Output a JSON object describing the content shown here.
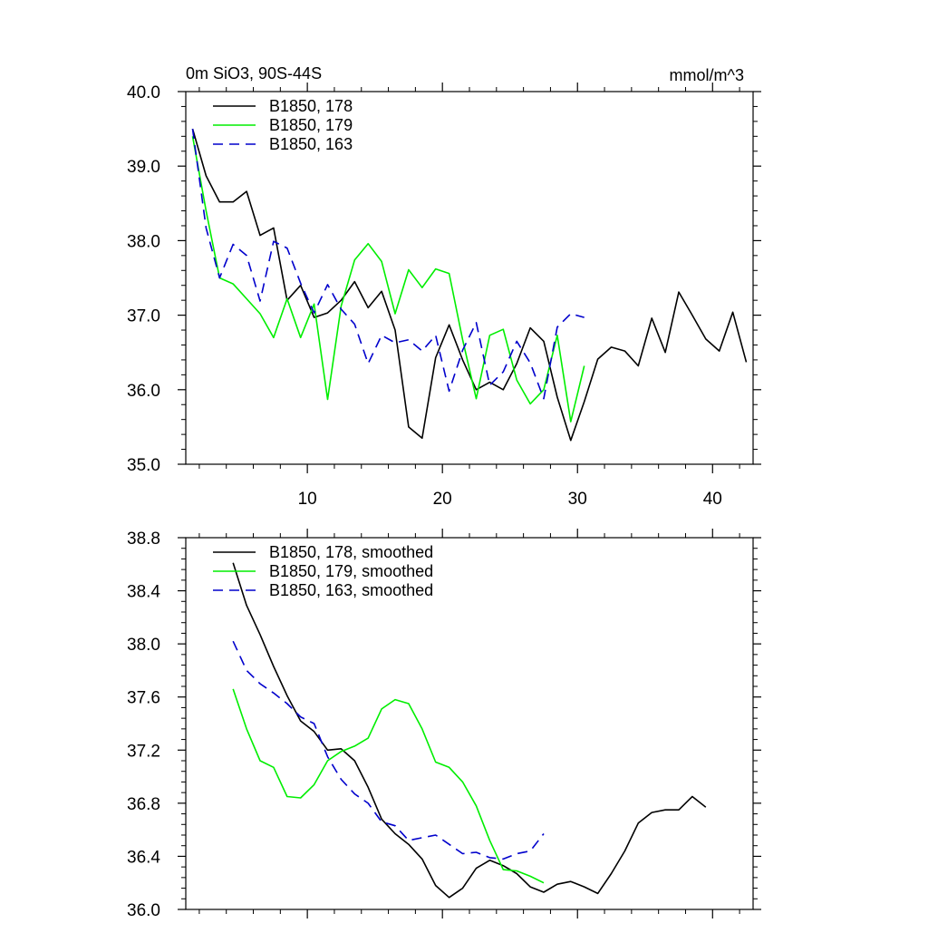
{
  "colors": {
    "s178": "#000000",
    "s179": "#00ee00",
    "s163": "#0000cc",
    "axis": "#000000"
  },
  "chart_data": [
    {
      "type": "line",
      "title": "0m SiO3, 90S-44S",
      "units": "mmol/m^3",
      "xlim": [
        1,
        43
      ],
      "ylim": [
        35.0,
        40.0
      ],
      "xticks": [
        10,
        20,
        30,
        40
      ],
      "xtick_labels": [
        "10",
        "20",
        "30",
        "40"
      ],
      "yticks": [
        35.0,
        36.0,
        37.0,
        38.0,
        39.0,
        40.0
      ],
      "ytick_labels": [
        "35.0",
        "36.0",
        "37.0",
        "38.0",
        "39.0",
        "40.0"
      ],
      "legend_position": "top-left",
      "series": [
        {
          "name": "B1850, 178",
          "key": "s178",
          "dash": "solid",
          "x": [
            1.5,
            2.5,
            3.5,
            4.5,
            5.5,
            6.5,
            7.5,
            8.5,
            9.5,
            10.5,
            11.5,
            12.5,
            13.5,
            14.5,
            15.5,
            16.5,
            17.5,
            18.5,
            19.5,
            20.5,
            21.5,
            22.5,
            23.5,
            24.5,
            25.5,
            26.5,
            27.5,
            28.5,
            29.5,
            30.5,
            31.5,
            32.5,
            33.5,
            34.5,
            35.5,
            36.5,
            37.5,
            38.5,
            39.5,
            40.5,
            41.5,
            42.5
          ],
          "values": [
            39.5,
            38.87,
            38.52,
            38.52,
            38.66,
            38.07,
            38.17,
            37.2,
            37.4,
            36.97,
            37.03,
            37.2,
            37.45,
            37.1,
            37.32,
            36.8,
            35.5,
            35.35,
            36.43,
            36.87,
            36.4,
            36.0,
            36.1,
            36.0,
            36.35,
            36.83,
            36.65,
            35.9,
            35.32,
            35.84,
            36.41,
            36.57,
            36.52,
            36.32,
            36.96,
            36.5,
            37.31,
            37.0,
            36.68,
            36.52,
            37.04,
            36.37
          ]
        },
        {
          "name": "B1850, 179",
          "key": "s179",
          "dash": "solid",
          "x": [
            1.5,
            2.5,
            3.5,
            4.5,
            5.5,
            6.5,
            7.5,
            8.5,
            9.5,
            10.5,
            11.5,
            12.5,
            13.5,
            14.5,
            15.5,
            16.5,
            17.5,
            18.5,
            19.5,
            20.5,
            21.5,
            22.5,
            23.5,
            24.5,
            25.5,
            26.5,
            27.5,
            28.5,
            29.5,
            30.5
          ],
          "values": [
            39.4,
            38.4,
            37.5,
            37.42,
            37.22,
            37.02,
            36.7,
            37.22,
            36.7,
            37.15,
            35.87,
            37.12,
            37.74,
            37.96,
            37.72,
            37.02,
            37.61,
            37.37,
            37.62,
            37.56,
            36.67,
            35.88,
            36.73,
            36.81,
            36.13,
            35.81,
            36.0,
            36.73,
            35.57,
            36.32
          ]
        },
        {
          "name": "B1850, 163",
          "key": "s163",
          "dash": "dashed",
          "x": [
            1.5,
            2.5,
            3.5,
            4.5,
            5.5,
            6.5,
            7.5,
            8.5,
            9.5,
            10.5,
            11.5,
            12.5,
            13.5,
            14.5,
            15.5,
            16.5,
            17.5,
            18.5,
            19.5,
            20.5,
            21.5,
            22.5,
            23.5,
            24.5,
            25.5,
            26.5,
            27.5,
            28.5,
            29.5,
            30.5
          ],
          "values": [
            39.5,
            38.17,
            37.5,
            37.95,
            37.8,
            37.19,
            37.99,
            37.9,
            37.43,
            37.03,
            37.41,
            37.08,
            36.88,
            36.35,
            36.73,
            36.63,
            36.67,
            36.52,
            36.73,
            35.98,
            36.53,
            36.9,
            36.06,
            36.24,
            36.65,
            36.36,
            35.88,
            36.84,
            37.02,
            36.97
          ]
        }
      ]
    },
    {
      "type": "line",
      "xlim": [
        1,
        43
      ],
      "ylim": [
        36.0,
        38.8
      ],
      "xticks": [
        10,
        20,
        30,
        40
      ],
      "xtick_labels": [],
      "yticks": [
        36.0,
        36.4,
        36.8,
        37.2,
        37.6,
        38.0,
        38.4,
        38.8
      ],
      "ytick_labels": [
        "36.0",
        "36.4",
        "36.8",
        "37.2",
        "37.6",
        "38.0",
        "38.4",
        "38.8"
      ],
      "legend_position": "top-left",
      "series": [
        {
          "name": "B1850, 178, smoothed",
          "key": "s178",
          "dash": "solid",
          "x": [
            4.5,
            5.5,
            6.5,
            7.5,
            8.5,
            9.5,
            10.5,
            11.5,
            12.5,
            13.5,
            14.5,
            15.5,
            16.5,
            17.5,
            18.5,
            19.5,
            20.5,
            21.5,
            22.5,
            23.5,
            24.5,
            25.5,
            26.5,
            27.5,
            28.5,
            29.5,
            30.5,
            31.5,
            32.5,
            33.5,
            34.5,
            35.5,
            36.5,
            37.5,
            38.5,
            39.5
          ],
          "values": [
            38.61,
            38.29,
            38.07,
            37.83,
            37.61,
            37.42,
            37.34,
            37.2,
            37.21,
            37.12,
            36.92,
            36.68,
            36.57,
            36.49,
            36.38,
            36.18,
            36.09,
            36.16,
            36.31,
            36.37,
            36.33,
            36.27,
            36.17,
            36.13,
            36.19,
            36.21,
            36.17,
            36.12,
            36.27,
            36.44,
            36.65,
            36.73,
            36.75,
            36.75,
            36.85,
            36.77
          ]
        },
        {
          "name": "B1850, 179, smoothed",
          "key": "s179",
          "dash": "solid",
          "x": [
            4.5,
            5.5,
            6.5,
            7.5,
            8.5,
            9.5,
            10.5,
            11.5,
            12.5,
            13.5,
            14.5,
            15.5,
            16.5,
            17.5,
            18.5,
            19.5,
            20.5,
            21.5,
            22.5,
            23.5,
            24.5,
            25.5,
            26.5,
            27.5
          ],
          "values": [
            37.66,
            37.36,
            37.12,
            37.07,
            36.85,
            36.84,
            36.94,
            37.12,
            37.19,
            37.23,
            37.29,
            37.51,
            37.58,
            37.55,
            37.36,
            37.11,
            37.07,
            36.96,
            36.78,
            36.52,
            36.3,
            36.29,
            36.25,
            36.2
          ]
        },
        {
          "name": "B1850, 163, smoothed",
          "key": "s163",
          "dash": "dashed",
          "x": [
            4.5,
            5.5,
            6.5,
            7.5,
            8.5,
            9.5,
            10.5,
            11.5,
            12.5,
            13.5,
            14.5,
            15.5,
            16.5,
            17.5,
            18.5,
            19.5,
            20.5,
            21.5,
            22.5,
            23.5,
            24.5,
            25.5,
            26.5,
            27.5
          ],
          "values": [
            38.02,
            37.8,
            37.7,
            37.63,
            37.55,
            37.45,
            37.4,
            37.15,
            36.98,
            36.87,
            36.8,
            36.66,
            36.63,
            36.52,
            36.54,
            36.56,
            36.49,
            36.42,
            36.43,
            36.39,
            36.38,
            36.42,
            36.44,
            36.57
          ]
        }
      ]
    }
  ]
}
